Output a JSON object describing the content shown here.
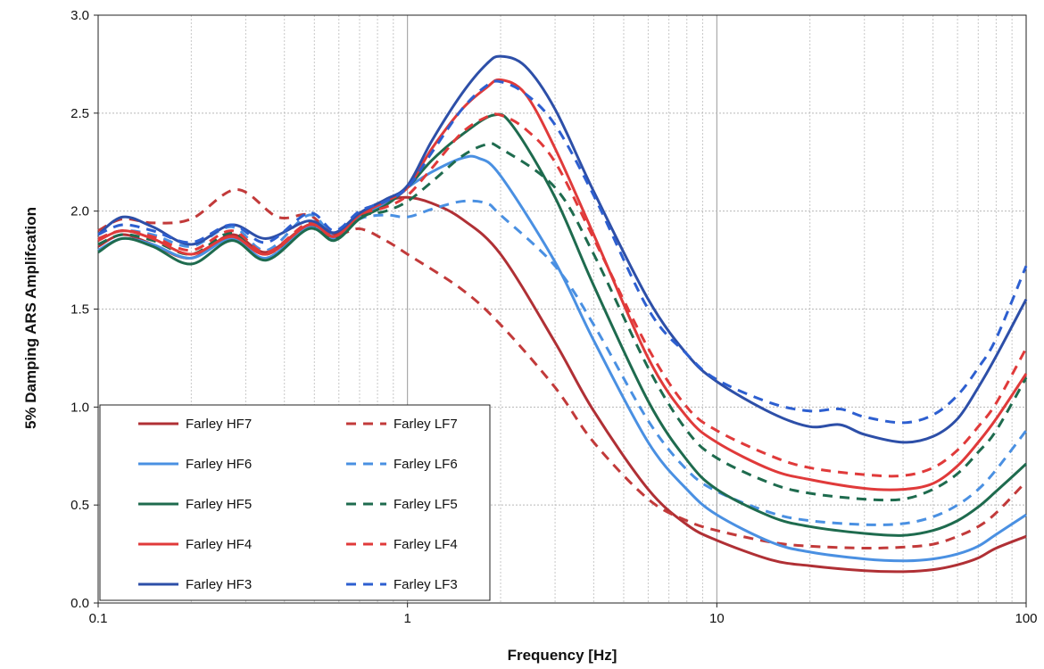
{
  "chart_data": {
    "type": "line",
    "title": "",
    "xlabel": "Frequency [Hz]",
    "ylabel": "5% Damping ARS Amplifcation",
    "xscale": "log",
    "xlim": [
      0.1,
      100
    ],
    "ylim": [
      0.0,
      3.0
    ],
    "xticks": [
      {
        "value": 0.1,
        "label": "0.1"
      },
      {
        "value": 1,
        "label": "1"
      },
      {
        "value": 10,
        "label": "10"
      },
      {
        "value": 100,
        "label": "100"
      }
    ],
    "yticks": [
      {
        "value": 0.0,
        "label": "0.0"
      },
      {
        "value": 0.5,
        "label": "0.5"
      },
      {
        "value": 1.0,
        "label": "1.0"
      },
      {
        "value": 1.5,
        "label": "1.5"
      },
      {
        "value": 2.0,
        "label": "2.0"
      },
      {
        "value": 2.5,
        "label": "2.5"
      },
      {
        "value": 3.0,
        "label": "3.0"
      }
    ],
    "grid": true,
    "legend_position": "bottom-left",
    "series": [
      {
        "name": "Farley HF7",
        "color": "#b03035",
        "dash": "solid",
        "points": [
          [
            0.1,
            1.82
          ],
          [
            0.12,
            1.88
          ],
          [
            0.15,
            1.83
          ],
          [
            0.2,
            1.76
          ],
          [
            0.27,
            1.88
          ],
          [
            0.35,
            1.79
          ],
          [
            0.48,
            1.93
          ],
          [
            0.58,
            1.88
          ],
          [
            0.7,
            1.98
          ],
          [
            0.85,
            2.05
          ],
          [
            1.0,
            2.07
          ],
          [
            1.2,
            2.04
          ],
          [
            1.5,
            1.96
          ],
          [
            2.0,
            1.78
          ],
          [
            3.0,
            1.33
          ],
          [
            4.0,
            0.98
          ],
          [
            6.0,
            0.58
          ],
          [
            8.0,
            0.4
          ],
          [
            10.0,
            0.32
          ],
          [
            15.0,
            0.22
          ],
          [
            20.0,
            0.19
          ],
          [
            30.0,
            0.165
          ],
          [
            40.0,
            0.16
          ],
          [
            50.0,
            0.17
          ],
          [
            60.0,
            0.195
          ],
          [
            70.0,
            0.23
          ],
          [
            80.0,
            0.28
          ],
          [
            100.0,
            0.34
          ]
        ]
      },
      {
        "name": "Farley LF7",
        "color": "#c23a3a",
        "dash": "dashed",
        "points": [
          [
            0.1,
            1.9
          ],
          [
            0.12,
            1.96
          ],
          [
            0.15,
            1.94
          ],
          [
            0.2,
            1.96
          ],
          [
            0.28,
            2.11
          ],
          [
            0.38,
            1.97
          ],
          [
            0.48,
            1.98
          ],
          [
            0.58,
            1.88
          ],
          [
            0.7,
            1.91
          ],
          [
            0.85,
            1.85
          ],
          [
            1.0,
            1.78
          ],
          [
            1.5,
            1.6
          ],
          [
            2.0,
            1.42
          ],
          [
            3.0,
            1.1
          ],
          [
            4.0,
            0.82
          ],
          [
            6.0,
            0.53
          ],
          [
            8.0,
            0.42
          ],
          [
            10.0,
            0.37
          ],
          [
            15.0,
            0.31
          ],
          [
            20.0,
            0.29
          ],
          [
            30.0,
            0.28
          ],
          [
            40.0,
            0.285
          ],
          [
            50.0,
            0.3
          ],
          [
            60.0,
            0.34
          ],
          [
            70.0,
            0.39
          ],
          [
            80.0,
            0.46
          ],
          [
            100.0,
            0.62
          ]
        ]
      },
      {
        "name": "Farley HF6",
        "color": "#4a90e2",
        "dash": "solid",
        "points": [
          [
            0.1,
            1.8
          ],
          [
            0.12,
            1.86
          ],
          [
            0.15,
            1.83
          ],
          [
            0.2,
            1.76
          ],
          [
            0.27,
            1.86
          ],
          [
            0.35,
            1.76
          ],
          [
            0.48,
            1.92
          ],
          [
            0.58,
            1.86
          ],
          [
            0.7,
            1.97
          ],
          [
            0.85,
            2.04
          ],
          [
            1.0,
            2.12
          ],
          [
            1.2,
            2.2
          ],
          [
            1.5,
            2.27
          ],
          [
            1.7,
            2.27
          ],
          [
            2.0,
            2.18
          ],
          [
            3.0,
            1.74
          ],
          [
            4.0,
            1.34
          ],
          [
            6.0,
            0.82
          ],
          [
            8.0,
            0.58
          ],
          [
            10.0,
            0.45
          ],
          [
            15.0,
            0.31
          ],
          [
            20.0,
            0.26
          ],
          [
            30.0,
            0.225
          ],
          [
            40.0,
            0.215
          ],
          [
            50.0,
            0.225
          ],
          [
            60.0,
            0.25
          ],
          [
            70.0,
            0.29
          ],
          [
            80.0,
            0.35
          ],
          [
            100.0,
            0.45
          ]
        ]
      },
      {
        "name": "Farley LF6",
        "color": "#4a90e2",
        "dash": "dashed",
        "points": [
          [
            0.1,
            1.86
          ],
          [
            0.12,
            1.9
          ],
          [
            0.15,
            1.88
          ],
          [
            0.2,
            1.82
          ],
          [
            0.27,
            1.92
          ],
          [
            0.35,
            1.8
          ],
          [
            0.48,
            1.98
          ],
          [
            0.58,
            1.87
          ],
          [
            0.7,
            1.96
          ],
          [
            0.85,
            1.98
          ],
          [
            1.0,
            1.97
          ],
          [
            1.2,
            2.01
          ],
          [
            1.5,
            2.05
          ],
          [
            1.8,
            2.04
          ],
          [
            2.0,
            1.98
          ],
          [
            3.0,
            1.72
          ],
          [
            4.0,
            1.42
          ],
          [
            6.0,
            0.93
          ],
          [
            8.0,
            0.68
          ],
          [
            10.0,
            0.57
          ],
          [
            15.0,
            0.46
          ],
          [
            20.0,
            0.42
          ],
          [
            30.0,
            0.4
          ],
          [
            40.0,
            0.405
          ],
          [
            50.0,
            0.44
          ],
          [
            60.0,
            0.5
          ],
          [
            70.0,
            0.58
          ],
          [
            80.0,
            0.68
          ],
          [
            100.0,
            0.88
          ]
        ]
      },
      {
        "name": "Farley HF5",
        "color": "#1e6b4e",
        "dash": "solid",
        "points": [
          [
            0.1,
            1.79
          ],
          [
            0.12,
            1.86
          ],
          [
            0.15,
            1.82
          ],
          [
            0.2,
            1.73
          ],
          [
            0.27,
            1.85
          ],
          [
            0.35,
            1.75
          ],
          [
            0.48,
            1.91
          ],
          [
            0.58,
            1.85
          ],
          [
            0.7,
            1.96
          ],
          [
            0.85,
            2.03
          ],
          [
            1.0,
            2.12
          ],
          [
            1.2,
            2.26
          ],
          [
            1.5,
            2.39
          ],
          [
            1.9,
            2.49
          ],
          [
            2.2,
            2.43
          ],
          [
            3.0,
            2.07
          ],
          [
            4.0,
            1.62
          ],
          [
            6.0,
            1.03
          ],
          [
            8.0,
            0.73
          ],
          [
            10.0,
            0.58
          ],
          [
            15.0,
            0.44
          ],
          [
            20.0,
            0.39
          ],
          [
            30.0,
            0.355
          ],
          [
            40.0,
            0.345
          ],
          [
            50.0,
            0.37
          ],
          [
            60.0,
            0.42
          ],
          [
            70.0,
            0.49
          ],
          [
            80.0,
            0.57
          ],
          [
            100.0,
            0.71
          ]
        ]
      },
      {
        "name": "Farley LF5",
        "color": "#1e6b4e",
        "dash": "dashed",
        "points": [
          [
            0.1,
            1.83
          ],
          [
            0.12,
            1.88
          ],
          [
            0.15,
            1.85
          ],
          [
            0.2,
            1.78
          ],
          [
            0.27,
            1.89
          ],
          [
            0.35,
            1.78
          ],
          [
            0.48,
            1.93
          ],
          [
            0.58,
            1.86
          ],
          [
            0.7,
            1.97
          ],
          [
            0.85,
            2.0
          ],
          [
            1.0,
            2.05
          ],
          [
            1.2,
            2.15
          ],
          [
            1.5,
            2.28
          ],
          [
            1.8,
            2.34
          ],
          [
            2.0,
            2.32
          ],
          [
            3.0,
            2.12
          ],
          [
            4.0,
            1.78
          ],
          [
            6.0,
            1.2
          ],
          [
            8.0,
            0.88
          ],
          [
            10.0,
            0.74
          ],
          [
            15.0,
            0.61
          ],
          [
            20.0,
            0.56
          ],
          [
            30.0,
            0.53
          ],
          [
            40.0,
            0.53
          ],
          [
            50.0,
            0.58
          ],
          [
            60.0,
            0.66
          ],
          [
            70.0,
            0.77
          ],
          [
            80.0,
            0.88
          ],
          [
            100.0,
            1.15
          ]
        ]
      },
      {
        "name": "Farley HF4",
        "color": "#e03a3a",
        "dash": "solid",
        "points": [
          [
            0.1,
            1.85
          ],
          [
            0.12,
            1.9
          ],
          [
            0.15,
            1.86
          ],
          [
            0.2,
            1.78
          ],
          [
            0.27,
            1.87
          ],
          [
            0.35,
            1.78
          ],
          [
            0.48,
            1.93
          ],
          [
            0.58,
            1.87
          ],
          [
            0.7,
            1.98
          ],
          [
            0.85,
            2.05
          ],
          [
            1.0,
            2.12
          ],
          [
            1.2,
            2.32
          ],
          [
            1.5,
            2.52
          ],
          [
            1.8,
            2.63
          ],
          [
            2.0,
            2.67
          ],
          [
            2.4,
            2.6
          ],
          [
            3.0,
            2.32
          ],
          [
            4.0,
            1.88
          ],
          [
            6.0,
            1.25
          ],
          [
            8.0,
            0.95
          ],
          [
            10.0,
            0.82
          ],
          [
            15.0,
            0.68
          ],
          [
            20.0,
            0.63
          ],
          [
            30.0,
            0.585
          ],
          [
            40.0,
            0.58
          ],
          [
            50.0,
            0.61
          ],
          [
            60.0,
            0.7
          ],
          [
            70.0,
            0.82
          ],
          [
            80.0,
            0.94
          ],
          [
            100.0,
            1.17
          ]
        ]
      },
      {
        "name": "Farley LF4",
        "color": "#e03a3a",
        "dash": "dashed",
        "points": [
          [
            0.1,
            1.86
          ],
          [
            0.12,
            1.9
          ],
          [
            0.15,
            1.87
          ],
          [
            0.2,
            1.8
          ],
          [
            0.27,
            1.9
          ],
          [
            0.35,
            1.79
          ],
          [
            0.48,
            1.94
          ],
          [
            0.58,
            1.87
          ],
          [
            0.7,
            1.98
          ],
          [
            0.85,
            2.02
          ],
          [
            1.0,
            2.08
          ],
          [
            1.2,
            2.22
          ],
          [
            1.5,
            2.4
          ],
          [
            1.8,
            2.48
          ],
          [
            2.0,
            2.49
          ],
          [
            2.4,
            2.42
          ],
          [
            3.0,
            2.25
          ],
          [
            4.0,
            1.86
          ],
          [
            6.0,
            1.3
          ],
          [
            8.0,
            1.0
          ],
          [
            10.0,
            0.88
          ],
          [
            15.0,
            0.75
          ],
          [
            20.0,
            0.69
          ],
          [
            30.0,
            0.655
          ],
          [
            40.0,
            0.65
          ],
          [
            50.0,
            0.69
          ],
          [
            60.0,
            0.78
          ],
          [
            70.0,
            0.9
          ],
          [
            80.0,
            1.02
          ],
          [
            100.0,
            1.3
          ]
        ]
      },
      {
        "name": "Farley HF3",
        "color": "#2d4fa8",
        "dash": "solid",
        "points": [
          [
            0.1,
            1.88
          ],
          [
            0.12,
            1.97
          ],
          [
            0.15,
            1.92
          ],
          [
            0.2,
            1.83
          ],
          [
            0.27,
            1.93
          ],
          [
            0.35,
            1.86
          ],
          [
            0.48,
            1.95
          ],
          [
            0.58,
            1.89
          ],
          [
            0.7,
            1.99
          ],
          [
            0.85,
            2.06
          ],
          [
            1.0,
            2.13
          ],
          [
            1.2,
            2.36
          ],
          [
            1.5,
            2.6
          ],
          [
            1.8,
            2.75
          ],
          [
            2.0,
            2.79
          ],
          [
            2.4,
            2.74
          ],
          [
            3.0,
            2.52
          ],
          [
            4.0,
            2.1
          ],
          [
            6.0,
            1.55
          ],
          [
            8.0,
            1.27
          ],
          [
            10.0,
            1.13
          ],
          [
            15.0,
            0.97
          ],
          [
            20.0,
            0.9
          ],
          [
            25.0,
            0.91
          ],
          [
            30.0,
            0.86
          ],
          [
            40.0,
            0.82
          ],
          [
            50.0,
            0.85
          ],
          [
            60.0,
            0.94
          ],
          [
            70.0,
            1.1
          ],
          [
            80.0,
            1.26
          ],
          [
            100.0,
            1.55
          ]
        ]
      },
      {
        "name": "Farley LF3",
        "color": "#2d5fd0",
        "dash": "dashed",
        "points": [
          [
            0.1,
            1.88
          ],
          [
            0.12,
            1.93
          ],
          [
            0.15,
            1.9
          ],
          [
            0.2,
            1.84
          ],
          [
            0.27,
            1.93
          ],
          [
            0.35,
            1.84
          ],
          [
            0.48,
            1.99
          ],
          [
            0.58,
            1.9
          ],
          [
            0.7,
            2.0
          ],
          [
            0.85,
            2.05
          ],
          [
            1.0,
            2.12
          ],
          [
            1.2,
            2.3
          ],
          [
            1.5,
            2.52
          ],
          [
            1.8,
            2.64
          ],
          [
            2.0,
            2.66
          ],
          [
            2.4,
            2.6
          ],
          [
            3.0,
            2.44
          ],
          [
            4.0,
            2.08
          ],
          [
            6.0,
            1.5
          ],
          [
            8.0,
            1.27
          ],
          [
            10.0,
            1.14
          ],
          [
            15.0,
            1.02
          ],
          [
            20.0,
            0.98
          ],
          [
            25.0,
            0.99
          ],
          [
            30.0,
            0.95
          ],
          [
            40.0,
            0.92
          ],
          [
            50.0,
            0.96
          ],
          [
            60.0,
            1.06
          ],
          [
            70.0,
            1.2
          ],
          [
            80.0,
            1.35
          ],
          [
            100.0,
            1.72
          ]
        ]
      }
    ]
  }
}
